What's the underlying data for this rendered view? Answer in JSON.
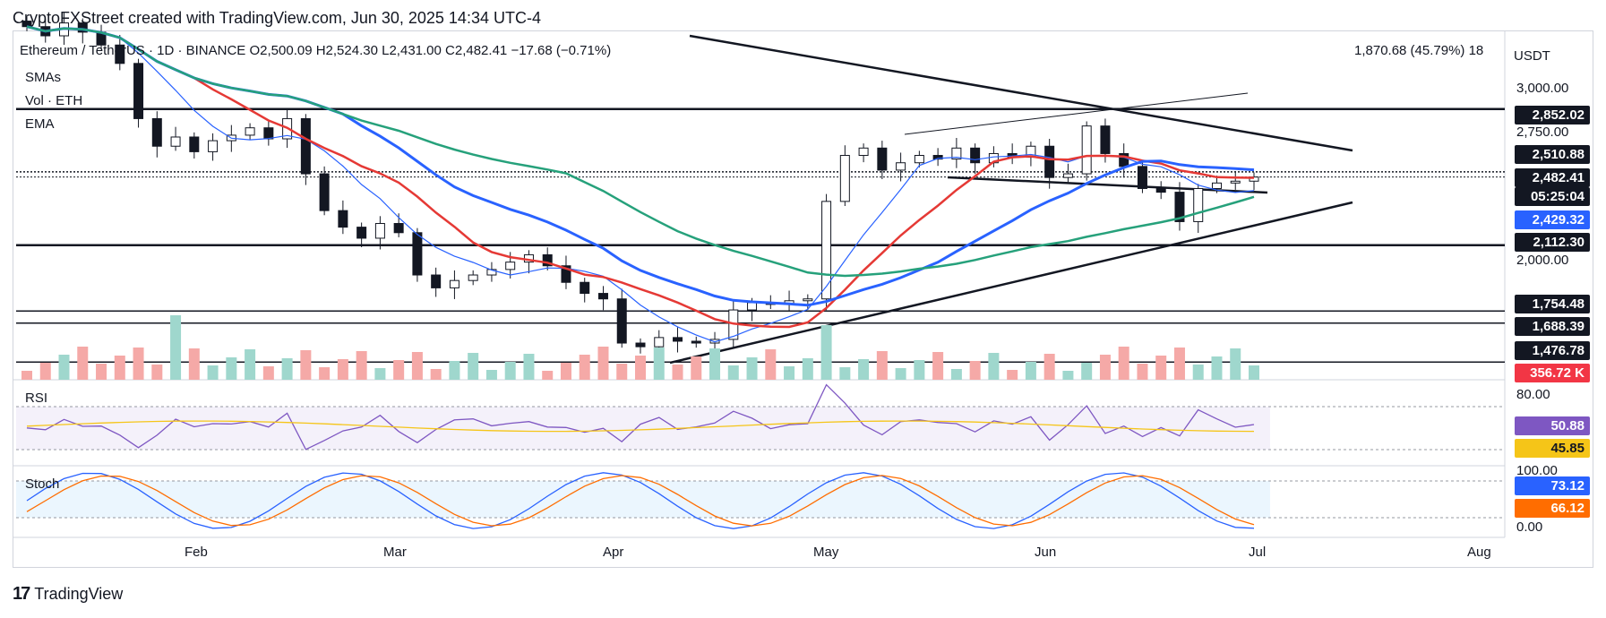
{
  "header": {
    "text": "CryptoFXStreet created with TradingView.com, Jun 30, 2025 14:34 UTC-4"
  },
  "symbol": {
    "name": "Ethereum / TetherUS · 1D · BINANCE",
    "open": "O2,500.09",
    "high": "H2,524.30",
    "low": "L2,431.00",
    "close": "C2,482.41",
    "change": "−17.68 (−0.71%)",
    "right_readout": "1,870.68 (45.79%) 18"
  },
  "indicators": {
    "smas": "SMAs",
    "vol": "Vol · ETH",
    "ema": "EMA",
    "rsi": "RSI",
    "stoch": "Stoch"
  },
  "currency": "USDT",
  "price_tags": {
    "t2852": "2,852.02",
    "t2510": "2,510.88",
    "t2482": "2,482.41",
    "countdown": "05:25:04",
    "t2429": "2,429.32",
    "t2112": "2,112.30",
    "t1754": "1,754.48",
    "t1688": "1,688.39",
    "t1476": "1,476.78",
    "vol": "356.72 K",
    "rsi1": "50.88",
    "rsi2": "45.85",
    "stoch1": "73.12",
    "stoch2": "66.12"
  },
  "axis": {
    "p3000": "3,000.00",
    "p2750": "2,750.00",
    "p2000": "2,000.00",
    "rsi80": "80.00",
    "st100": "100.00",
    "st0": "0.00"
  },
  "months": [
    "Feb",
    "Mar",
    "Apr",
    "May",
    "Jun",
    "Jul",
    "Aug"
  ],
  "colors": {
    "up": "#26a69a",
    "down": "#ef5350",
    "sma_red": "#e53935",
    "sma_blue": "#2962ff",
    "ema_green": "#26a17b",
    "tag_dark": "#131722",
    "tag_blue": "#2962ff",
    "tag_red": "#f23645",
    "rsi_purple": "#7e57c2",
    "rsi_yellow": "#f5c518",
    "stoch_blue": "#2962ff",
    "stoch_orange": "#ff6d00"
  },
  "chart_data": {
    "type": "candlestick",
    "title": "Ethereum / TetherUS · 1D · BINANCE",
    "ylim": [
      1400,
      3250
    ],
    "horizontal_levels": [
      2852.02,
      2510.88,
      2482.41,
      2429.32,
      2112.3,
      1754.48,
      1688.39,
      1476.78
    ],
    "x_labels": [
      "Feb",
      "Mar",
      "Apr",
      "May",
      "Jun",
      "Jul",
      "Aug"
    ],
    "close_series": [
      3300,
      3250,
      3320,
      3270,
      3200,
      3100,
      2800,
      2650,
      2700,
      2620,
      2680,
      2710,
      2750,
      2690,
      2800,
      2500,
      2300,
      2210,
      2150,
      2230,
      2180,
      1950,
      1880,
      1920,
      1950,
      1980,
      2020,
      2060,
      2000,
      1910,
      1850,
      1820,
      1580,
      1560,
      1610,
      1590,
      1580,
      1600,
      1760,
      1800,
      1790,
      1810,
      1820,
      2350,
      2600,
      2640,
      2520,
      2560,
      2600,
      2580,
      2640,
      2560,
      2610,
      2590,
      2650,
      2480,
      2500,
      2760,
      2610,
      2540,
      2420,
      2400,
      2240,
      2420,
      2450,
      2460,
      2482.41
    ],
    "rsi": {
      "value": 50.88,
      "ma": 45.85,
      "levels": [
        70,
        30
      ]
    },
    "stoch": {
      "k": 73.12,
      "d": 66.12,
      "levels": [
        80,
        20
      ]
    },
    "volume_last": "356.72 K"
  }
}
